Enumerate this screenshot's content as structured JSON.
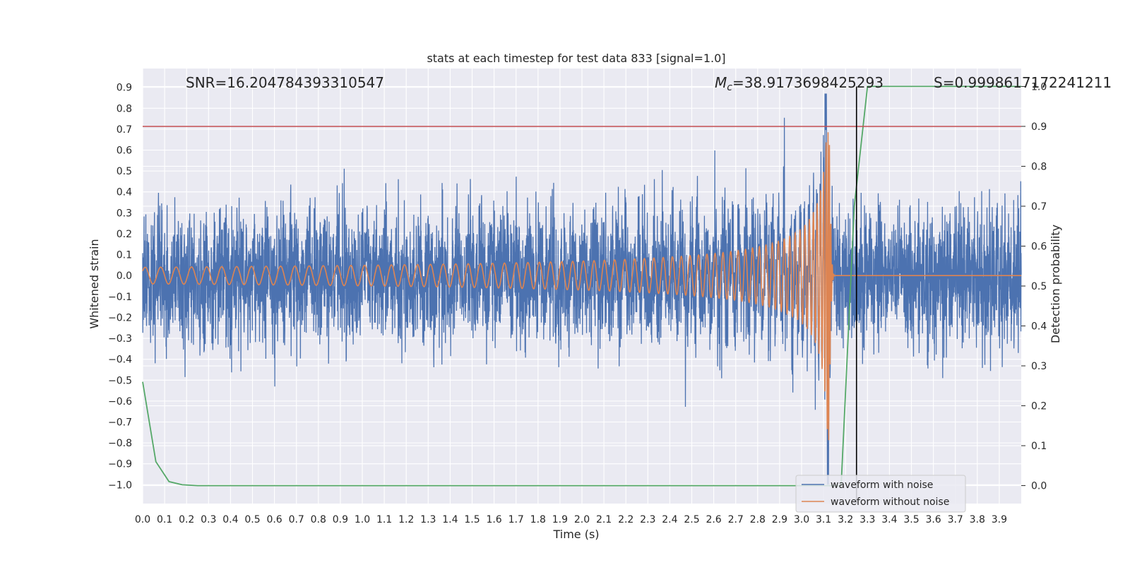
{
  "chart_data": {
    "type": "line",
    "title": "stats at each timestep for test data 833 [signal=1.0]",
    "xlabel": "Time (s)",
    "ylabel_left": "Whitened strain",
    "ylabel_right": "Detection probability",
    "xlim": [
      0.0,
      4.0
    ],
    "ylim_left": [
      -1.09,
      0.99
    ],
    "ylim_right": [
      -0.045,
      1.045
    ],
    "x_ticks": [
      "0.0",
      "0.1",
      "0.2",
      "0.3",
      "0.4",
      "0.5",
      "0.6",
      "0.7",
      "0.8",
      "0.9",
      "1.0",
      "1.1",
      "1.2",
      "1.3",
      "1.4",
      "1.5",
      "1.6",
      "1.7",
      "1.8",
      "1.9",
      "2.0",
      "2.1",
      "2.2",
      "2.3",
      "2.4",
      "2.5",
      "2.6",
      "2.7",
      "2.8",
      "2.9",
      "3.0",
      "3.1",
      "3.2",
      "3.3",
      "3.4",
      "3.5",
      "3.6",
      "3.7",
      "3.8",
      "3.9"
    ],
    "y_ticks_left": [
      "0.9",
      "0.8",
      "0.7",
      "0.6",
      "0.5",
      "0.4",
      "0.3",
      "0.2",
      "0.1",
      "0.0",
      "−0.1",
      "−0.2",
      "−0.3",
      "−0.4",
      "−0.5",
      "−0.6",
      "−0.7",
      "−0.8",
      "−0.9",
      "−1.0"
    ],
    "y_ticks_right": [
      "1.0",
      "0.9",
      "0.8",
      "0.7",
      "0.6",
      "0.5",
      "0.4",
      "0.3",
      "0.2",
      "0.1",
      "0.0"
    ],
    "annotations": {
      "snr": "SNR=16.204784393310547",
      "mc_symbol": "M",
      "mc_sub": "c",
      "mc_value": "=38.9173698425293",
      "s": "S=0.9998617172241211"
    },
    "threshold_right": 0.9,
    "merger_time": 3.25,
    "grid": true,
    "legend_position": "lower-right",
    "series": [
      {
        "name": "waveform with noise",
        "axis": "left",
        "color": "#4c72b0",
        "description_kind": "noise",
        "typical_abs_amplitude": 0.35,
        "peak_max": 0.87,
        "peak_min": -1.0,
        "peak_times": [
          3.11,
          3.12
        ]
      },
      {
        "name": "waveform without noise",
        "axis": "left",
        "color": "#dd8452",
        "description_kind": "chirp",
        "start_amplitude": 0.005,
        "peak_amplitude": 0.85,
        "merger_time": 3.12,
        "start_frequency_hz": 14,
        "merger_frequency_hz": 150
      },
      {
        "name": "detection probability",
        "axis": "right",
        "color": "#55a868",
        "x": [
          0.0,
          0.06,
          0.12,
          0.18,
          0.25,
          0.3,
          0.5,
          1.0,
          2.0,
          3.0,
          3.1,
          3.18,
          3.24,
          3.3,
          3.5,
          3.7,
          4.0
        ],
        "y": [
          0.26,
          0.06,
          0.01,
          0.002,
          0.0,
          0.0,
          0.0,
          0.0,
          0.0,
          0.0,
          0.0,
          0.0,
          0.7,
          1.0,
          1.0,
          1.0,
          1.0
        ]
      }
    ]
  },
  "legend": {
    "items": [
      {
        "label": "waveform with noise",
        "color": "#4c72b0"
      },
      {
        "label": "waveform without noise",
        "color": "#dd8452"
      }
    ]
  }
}
